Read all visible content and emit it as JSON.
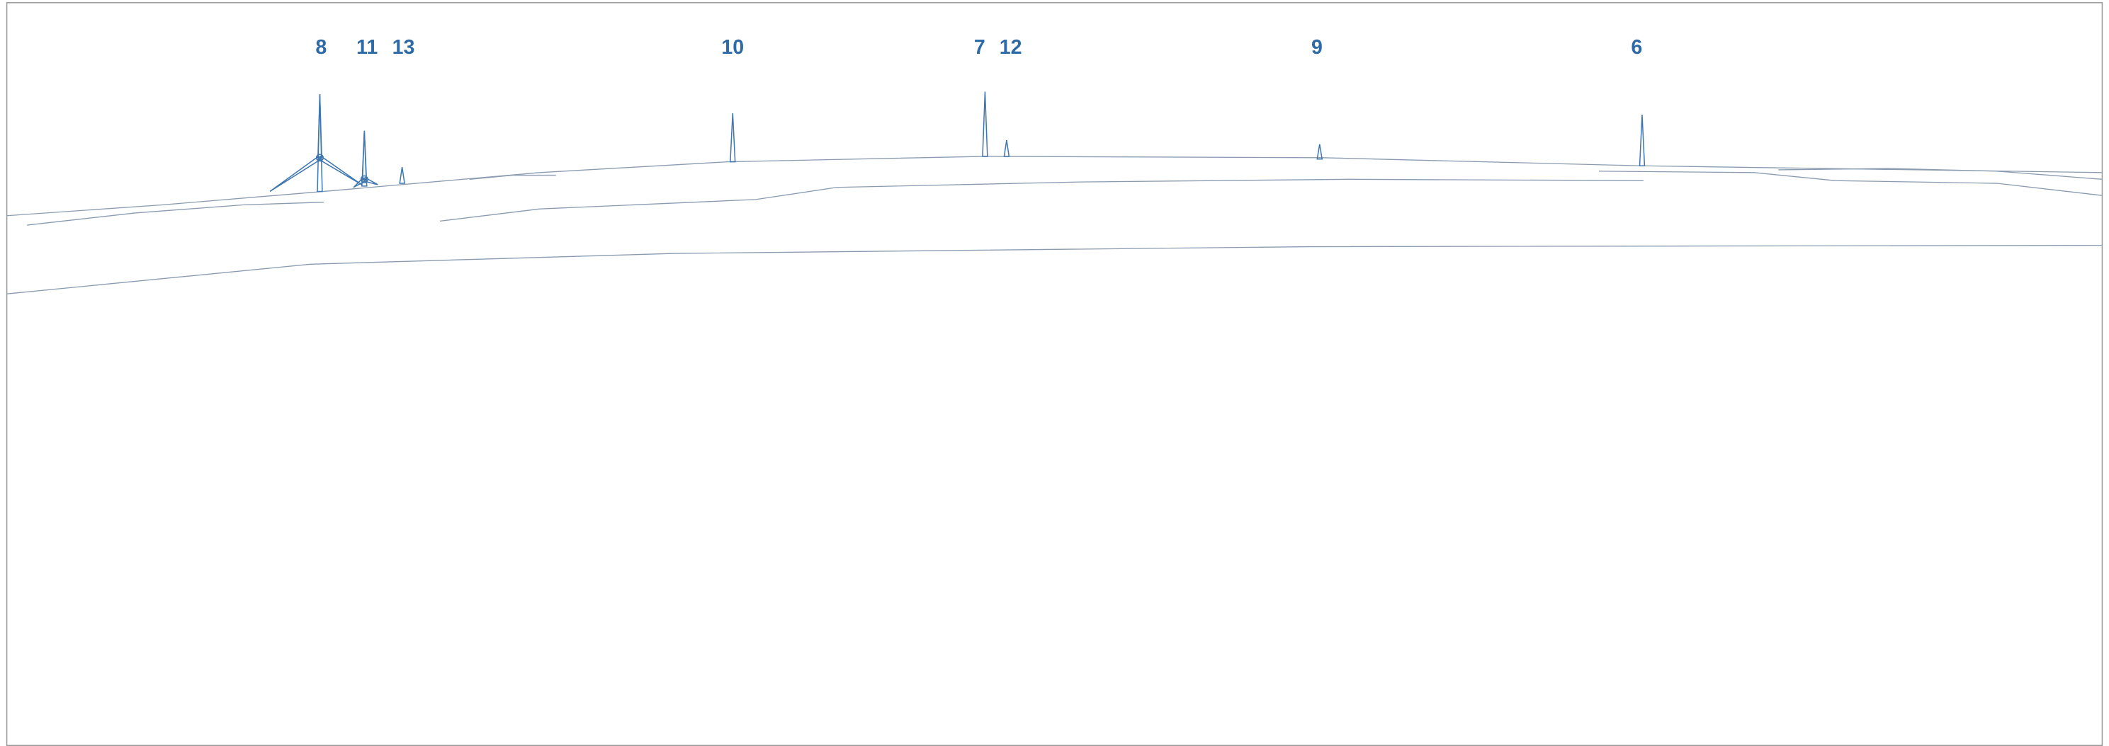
{
  "turbines": [
    {
      "label": "8"
    },
    {
      "label": "11"
    },
    {
      "label": "13"
    },
    {
      "label": "10"
    },
    {
      "label": "7"
    },
    {
      "label": "12"
    },
    {
      "label": "9"
    },
    {
      "label": "6"
    }
  ]
}
